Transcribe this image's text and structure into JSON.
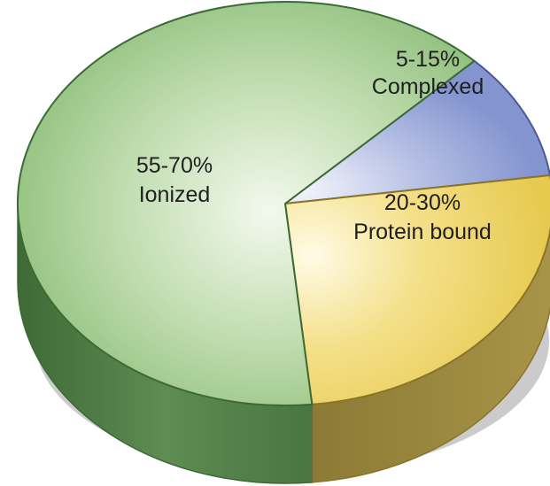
{
  "chart_data": {
    "type": "pie",
    "title": "",
    "unit": "%",
    "slices": [
      {
        "name": "Ionized",
        "value": 62.5,
        "range_label": "55-70%",
        "color": "#9cc98a"
      },
      {
        "name": "Complexed",
        "value": 10,
        "range_label": "5-15%",
        "color": "#8e9ed3"
      },
      {
        "name": "Protein bound",
        "value": 25,
        "range_label": "20-30%",
        "color": "#ecd468"
      }
    ],
    "style": "3d-tilted",
    "legend": "none (labels on slices)"
  },
  "colors": {
    "ionized_side": "#4f7a45",
    "protein_side": "#9a8640",
    "outline_green": "#3c6a34",
    "outline_gold": "#8a7428",
    "outline_blue": "#4a5a96",
    "shadow": "#c9c9c9"
  }
}
